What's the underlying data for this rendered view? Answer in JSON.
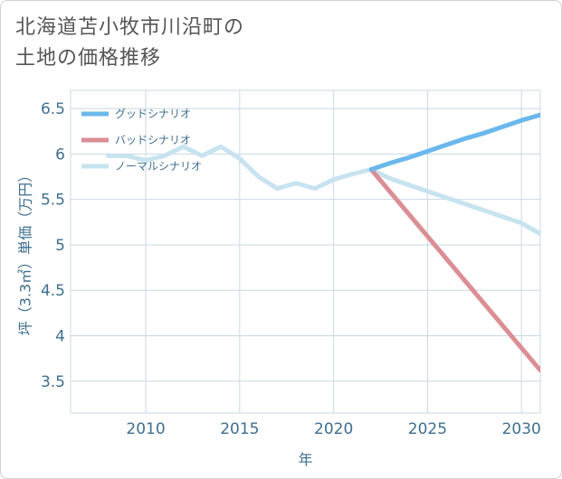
{
  "chart_data": {
    "type": "line",
    "title": "北海道苫小牧市川沿町の\n土地の価格推移",
    "xlabel": "年",
    "ylabel": "坪（3.3㎡）単価（万円）",
    "xlim": [
      2006,
      2031
    ],
    "ylim": [
      3.15,
      6.7
    ],
    "xticks": [
      2010,
      2015,
      2020,
      2025,
      2030
    ],
    "yticks": [
      3.5,
      4,
      4.5,
      5,
      5.5,
      6,
      6.5
    ],
    "xtick_labels": [
      "2010",
      "2015",
      "2020",
      "2025",
      "2030"
    ],
    "ytick_labels": [
      "3.5",
      "4",
      "4.5",
      "5",
      "5.5",
      "6",
      "6.5"
    ],
    "grid": true,
    "legend_position": "top-left",
    "series": [
      {
        "name": "ノーマルシナリオ",
        "color": "#c7e3ef",
        "x": [
          2008,
          2009,
          2010,
          2011,
          2012,
          2013,
          2014,
          2015,
          2016,
          2017,
          2018,
          2019,
          2020,
          2021,
          2022,
          2023,
          2024,
          2025,
          2026,
          2027,
          2028,
          2029,
          2030,
          2031
        ],
        "y": [
          5.98,
          5.98,
          5.93,
          5.98,
          6.08,
          5.98,
          6.08,
          5.95,
          5.75,
          5.62,
          5.68,
          5.62,
          5.72,
          5.78,
          5.83,
          5.73,
          5.66,
          5.59,
          5.52,
          5.45,
          5.38,
          5.31,
          5.24,
          5.12
        ]
      },
      {
        "name": "バッドシナリオ",
        "color": "#dc8e95",
        "x": [
          2022,
          2031
        ],
        "y": [
          5.83,
          3.62
        ]
      },
      {
        "name": "グッドシナリオ",
        "color": "#6ab8ec",
        "x": [
          2022,
          2023,
          2024,
          2025,
          2026,
          2027,
          2028,
          2029,
          2030,
          2031
        ],
        "y": [
          5.83,
          5.9,
          5.96,
          6.03,
          6.1,
          6.17,
          6.23,
          6.3,
          6.37,
          6.43
        ]
      }
    ],
    "legend_order": [
      "グッドシナリオ",
      "バッドシナリオ",
      "ノーマルシナリオ"
    ]
  }
}
